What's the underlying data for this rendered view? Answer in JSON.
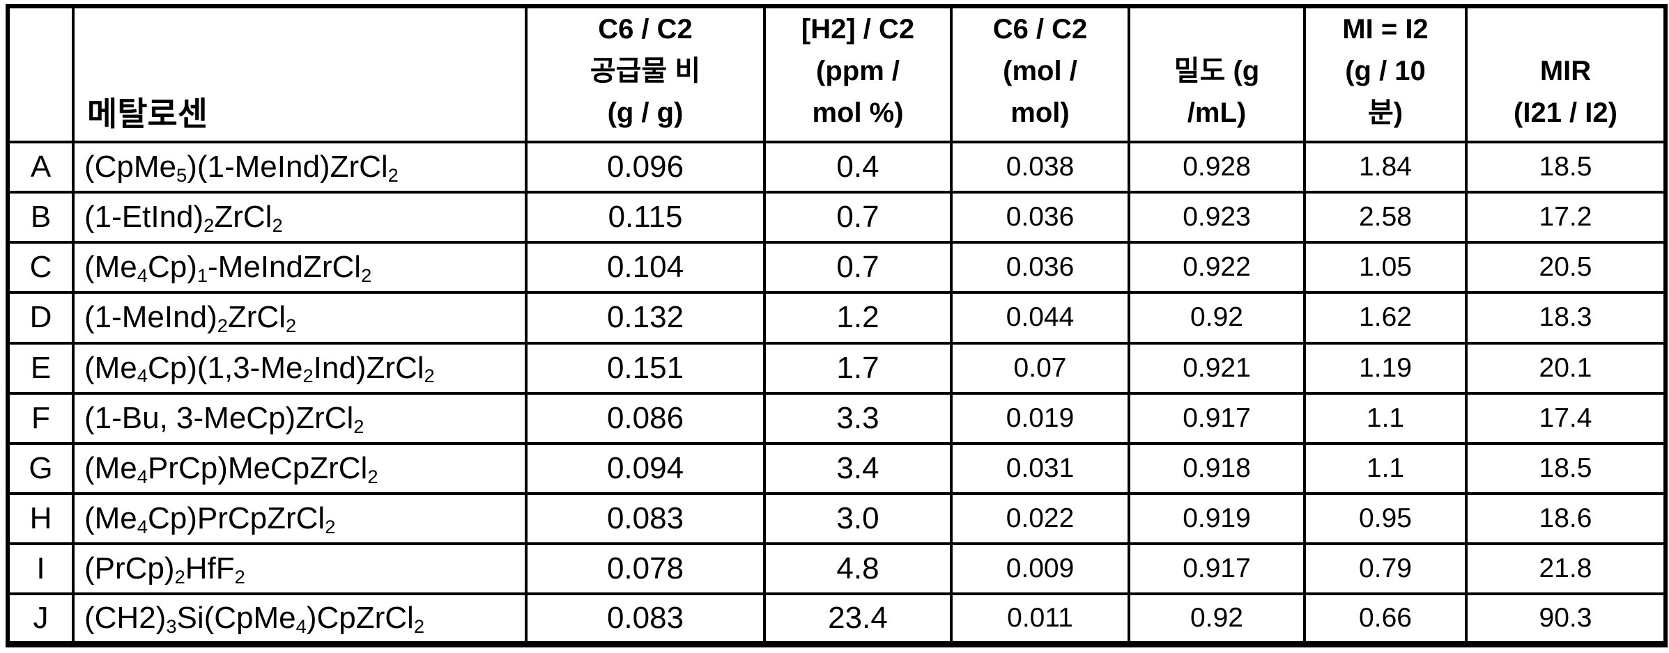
{
  "table": {
    "corner_label": "",
    "headers": {
      "metallocene": "메탈로센",
      "feed_ratio": "C6 / C2\n공급물 비\n(g / g)",
      "h2_c2": "[H2] / C2\n(ppm /\nmol %)",
      "c6_c2_mol": "C6 / C2\n(mol /\nmol)",
      "density": "밀도 (g\n/mL)",
      "mi": "MI = I2\n(g / 10\n분)",
      "mir": "MIR\n(I21 / I2)"
    },
    "rows": [
      {
        "label": "A",
        "formula": "(CpMe{5})(1-MeInd)ZrCl{2}",
        "values": [
          "0.096",
          "0.4",
          "0.038",
          "0.928",
          "1.84",
          "18.5"
        ]
      },
      {
        "label": "B",
        "formula": "(1-EtInd){2}ZrCl{2}",
        "values": [
          "0.115",
          "0.7",
          "0.036",
          "0.923",
          "2.58",
          "17.2"
        ]
      },
      {
        "label": "C",
        "formula": "(Me{4}Cp){1}-MeIndZrCl{2}",
        "values": [
          "0.104",
          "0.7",
          "0.036",
          "0.922",
          "1.05",
          "20.5"
        ]
      },
      {
        "label": "D",
        "formula": "(1-MeInd){2}ZrCl{2}",
        "values": [
          "0.132",
          "1.2",
          "0.044",
          "0.92",
          "1.62",
          "18.3"
        ]
      },
      {
        "label": "E",
        "formula": "(Me{4}Cp)(1,3-Me{2}Ind)ZrCl{2}",
        "values": [
          "0.151",
          "1.7",
          "0.07",
          "0.921",
          "1.19",
          "20.1"
        ]
      },
      {
        "label": "F",
        "formula": "(1-Bu, 3-MeCp)ZrCl{2}",
        "values": [
          "0.086",
          "3.3",
          "0.019",
          "0.917",
          "1.1",
          "17.4"
        ]
      },
      {
        "label": "G",
        "formula": "(Me{4}PrCp)MeCpZrCl{2}",
        "values": [
          "0.094",
          "3.4",
          "0.031",
          "0.918",
          "1.1",
          "18.5"
        ]
      },
      {
        "label": "H",
        "formula": "(Me{4}Cp)PrCpZrCl{2}",
        "values": [
          "0.083",
          "3.0",
          "0.022",
          "0.919",
          "0.95",
          "18.6"
        ]
      },
      {
        "label": "I",
        "formula": "(PrCp){2}HfF{2}",
        "values": [
          "0.078",
          "4.8",
          "0.009",
          "0.917",
          "0.79",
          "21.8"
        ]
      },
      {
        "label": "J",
        "formula": "(CH2){3}Si(CpMe{4})CpZrCl{2}",
        "values": [
          "0.083",
          "23.4",
          "0.011",
          "0.92",
          "0.66",
          "90.3"
        ]
      }
    ]
  },
  "colors": {
    "border": "#000000",
    "background": "#ffffff",
    "text": "#000000"
  }
}
